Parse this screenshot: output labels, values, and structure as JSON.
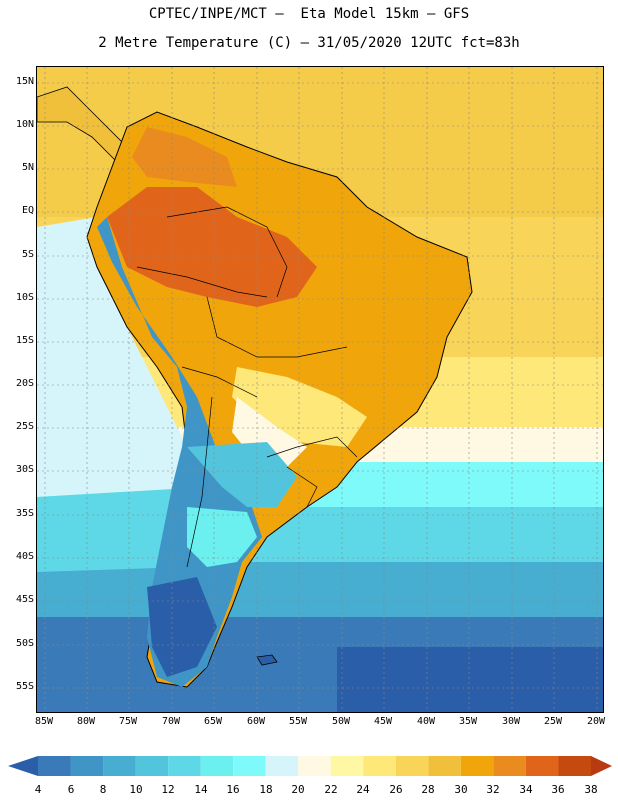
{
  "header": {
    "line1": "CPTEC/INPE/MCT –  Eta Model 15km – GFS",
    "line2": "2 Metre Temperature (C) – 31/05/2020 12UTC fct=83h"
  },
  "map": {
    "lat_labels": [
      "15N",
      "10N",
      "5N",
      "EQ",
      "5S",
      "10S",
      "15S",
      "20S",
      "25S",
      "30S",
      "35S",
      "40S",
      "45S",
      "50S",
      "55S"
    ],
    "lon_labels": [
      "85W",
      "80W",
      "75W",
      "70W",
      "65W",
      "60W",
      "55W",
      "50W",
      "45W",
      "40W",
      "35W",
      "30W",
      "25W",
      "20W"
    ]
  },
  "colorbar": {
    "labels": [
      "4",
      "6",
      "8",
      "10",
      "12",
      "14",
      "16",
      "18",
      "20",
      "22",
      "24",
      "26",
      "28",
      "30",
      "32",
      "34",
      "36",
      "38"
    ],
    "colors": [
      "#2b5ea8",
      "#3a7ab8",
      "#3f95c6",
      "#47aed2",
      "#52c4dc",
      "#5ed8e6",
      "#6befef",
      "#7ffafa",
      "#d6f5fb",
      "#fff8e3",
      "#fef8a4",
      "#fde879",
      "#f8d558",
      "#f1c03b",
      "#f0a60b",
      "#e98b1f",
      "#e0651a",
      "#c44a10",
      "#b83a10"
    ]
  }
}
